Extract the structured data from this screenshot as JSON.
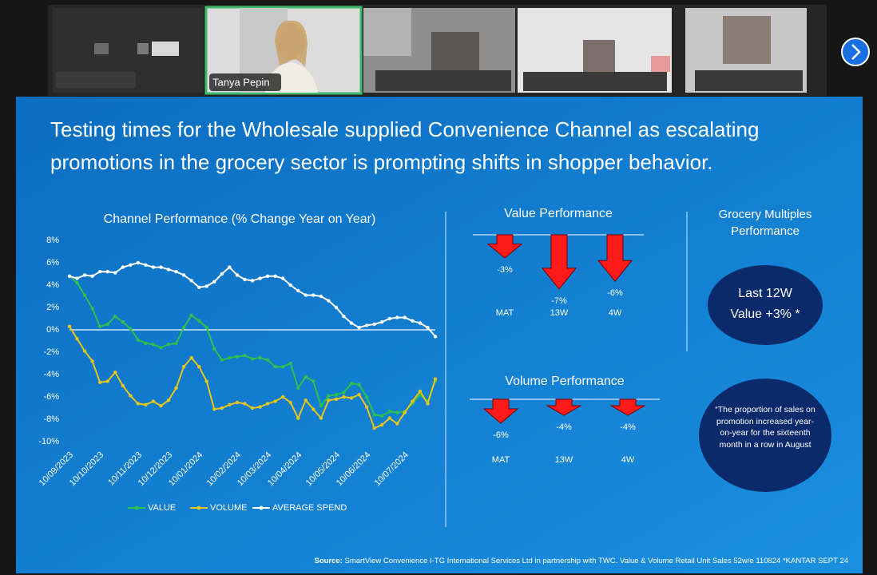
{
  "meeting": {
    "participants": [
      {
        "name": "Tanya Pepin"
      }
    ]
  },
  "slide": {
    "title": "Testing times for the Wholesale supplied Convenience Channel as escalating promotions in the grocery sector is prompting shifts in shopper behavior.",
    "grocery_multiples": {
      "title": "Grocery Multiples Performance",
      "badge": [
        "Last 12W",
        "Value +3% *"
      ],
      "quote": "“The proportion of sales on promotion increased year-on-year for the sixteenth month in a row in August"
    },
    "source_label": "Source:",
    "source": "SmartView Convenience I-TG International Services Ltd in partnership with TWC. Value & Volume Retail Unit Sales 52w/e 110824 *KANTAR SEPT 24"
  },
  "chart_data": [
    {
      "type": "line",
      "title": "Channel Performance (% Change Year on Year)",
      "categories": [
        "10/09/2023",
        null,
        null,
        null,
        "10/10/2023",
        null,
        null,
        null,
        null,
        "10/11/2023",
        null,
        null,
        null,
        "10/12/2023",
        null,
        null,
        null,
        "10/01/2024",
        null,
        null,
        null,
        null,
        "10/02/2024",
        null,
        null,
        null,
        "10/03/2024",
        null,
        null,
        null,
        "10/04/2024",
        null,
        null,
        null,
        null,
        "10/05/2024",
        null,
        null,
        null,
        "10/06/2024",
        null,
        null,
        null,
        null,
        "10/07/2024",
        null,
        null,
        null,
        null
      ],
      "series": [
        {
          "name": "VALUE",
          "color": "#2fbf4f",
          "values": [
            4.8,
            4.2,
            3.1,
            1.9,
            0.3,
            0.5,
            1.2,
            0.7,
            0.1,
            -0.9,
            -1.2,
            -1.3,
            -1.6,
            -1.3,
            -1.2,
            0.2,
            1.3,
            0.8,
            0.2,
            -1.7,
            -2.7,
            -2.5,
            -2.4,
            -2.3,
            -2.6,
            -2.5,
            -2.7,
            -3.3,
            -3.3,
            -3.0,
            -5.2,
            -4.2,
            -4.6,
            -6.8,
            -5.9,
            -5.8,
            -5.6,
            -4.8,
            -4.9,
            -6.0,
            -7.6,
            -7.7,
            -7.3,
            -7.4,
            -7.3,
            -6.6,
            -5.8,
            -6.4,
            -4.6
          ]
        },
        {
          "name": "VOLUME",
          "color": "#e8c51a",
          "values": [
            0.3,
            -0.8,
            -1.9,
            -2.8,
            -4.7,
            -4.6,
            -3.8,
            -5.0,
            -5.9,
            -6.6,
            -6.7,
            -6.4,
            -6.8,
            -6.3,
            -5.2,
            -3.3,
            -2.5,
            -3.3,
            -4.6,
            -7.1,
            -7.0,
            -6.7,
            -6.5,
            -6.6,
            -7.0,
            -6.9,
            -6.6,
            -6.4,
            -6.0,
            -6.5,
            -7.9,
            -6.3,
            -7.1,
            -7.9,
            -6.3,
            -6.2,
            -6.0,
            -6.1,
            -5.8,
            -6.9,
            -8.8,
            -8.5,
            -7.9,
            -8.4,
            -7.4,
            -6.4,
            -5.5,
            -6.6,
            -4.4
          ]
        },
        {
          "name": "AVERAGE SPEND",
          "color": "#ffffff",
          "values": [
            4.8,
            4.6,
            4.9,
            4.8,
            5.2,
            5.2,
            5.1,
            5.6,
            5.8,
            6.0,
            5.8,
            5.6,
            5.6,
            5.4,
            5.2,
            4.9,
            4.4,
            3.8,
            3.9,
            4.3,
            5.0,
            5.6,
            4.9,
            4.5,
            4.4,
            4.6,
            4.8,
            4.8,
            4.6,
            4.0,
            3.5,
            3.1,
            3.1,
            3.0,
            2.6,
            2.0,
            1.2,
            0.6,
            0.2,
            0.4,
            0.5,
            0.7,
            1.0,
            1.1,
            1.1,
            0.8,
            0.6,
            0.2,
            -0.6
          ]
        }
      ],
      "ylim": [
        -10,
        8
      ],
      "yticks": [
        {
          "value": 8,
          "label": "8%"
        },
        {
          "value": 6,
          "label": "6%"
        },
        {
          "value": 4,
          "label": "4%"
        },
        {
          "value": 2,
          "label": "2%"
        },
        {
          "value": 0,
          "label": "0%"
        },
        {
          "value": -2,
          "label": "-2%"
        },
        {
          "value": -4,
          "label": "-4%"
        },
        {
          "value": -6,
          "label": "-6%"
        },
        {
          "value": -8,
          "label": "-8%"
        },
        {
          "value": -10,
          "label": "-10%"
        }
      ],
      "zero_line": true,
      "legend": "bottom"
    },
    {
      "type": "arrow",
      "title": "Value Performance",
      "categories": [
        "MAT",
        "13W",
        "4W"
      ],
      "values": [
        -3,
        -7,
        -6
      ],
      "value_labels": [
        "-3%",
        "-7%",
        "-6%"
      ],
      "color": "#ff1a1a"
    },
    {
      "type": "arrow",
      "title": "Volume Performance",
      "categories": [
        "MAT",
        "13W",
        "4W"
      ],
      "values": [
        -6,
        -4,
        -4
      ],
      "value_labels": [
        "-6%",
        "-4%",
        "-4%"
      ],
      "color": "#ff1a1a"
    }
  ]
}
